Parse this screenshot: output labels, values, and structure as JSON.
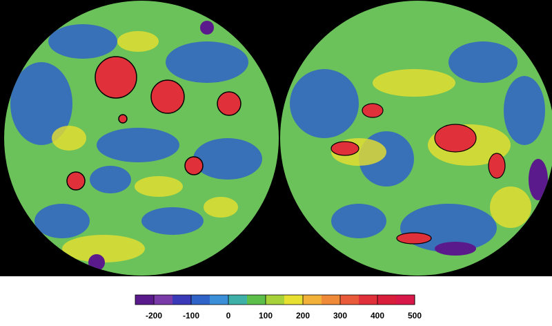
{
  "chart_data": {
    "type": "colorbar",
    "lim": [
      -250,
      500
    ],
    "ticks": [
      -200,
      -100,
      0,
      100,
      200,
      300,
      400,
      500
    ],
    "colors": [
      "#5a1a8c",
      "#7a3aa8",
      "#3a3ab8",
      "#2f63c8",
      "#3a8fd8",
      "#3fb0a8",
      "#5cbf4a",
      "#a8d23a",
      "#e8e030",
      "#f2b23a",
      "#ee8a38",
      "#e85a3a",
      "#e0303a",
      "#d81e3a",
      "#d81848"
    ]
  }
}
